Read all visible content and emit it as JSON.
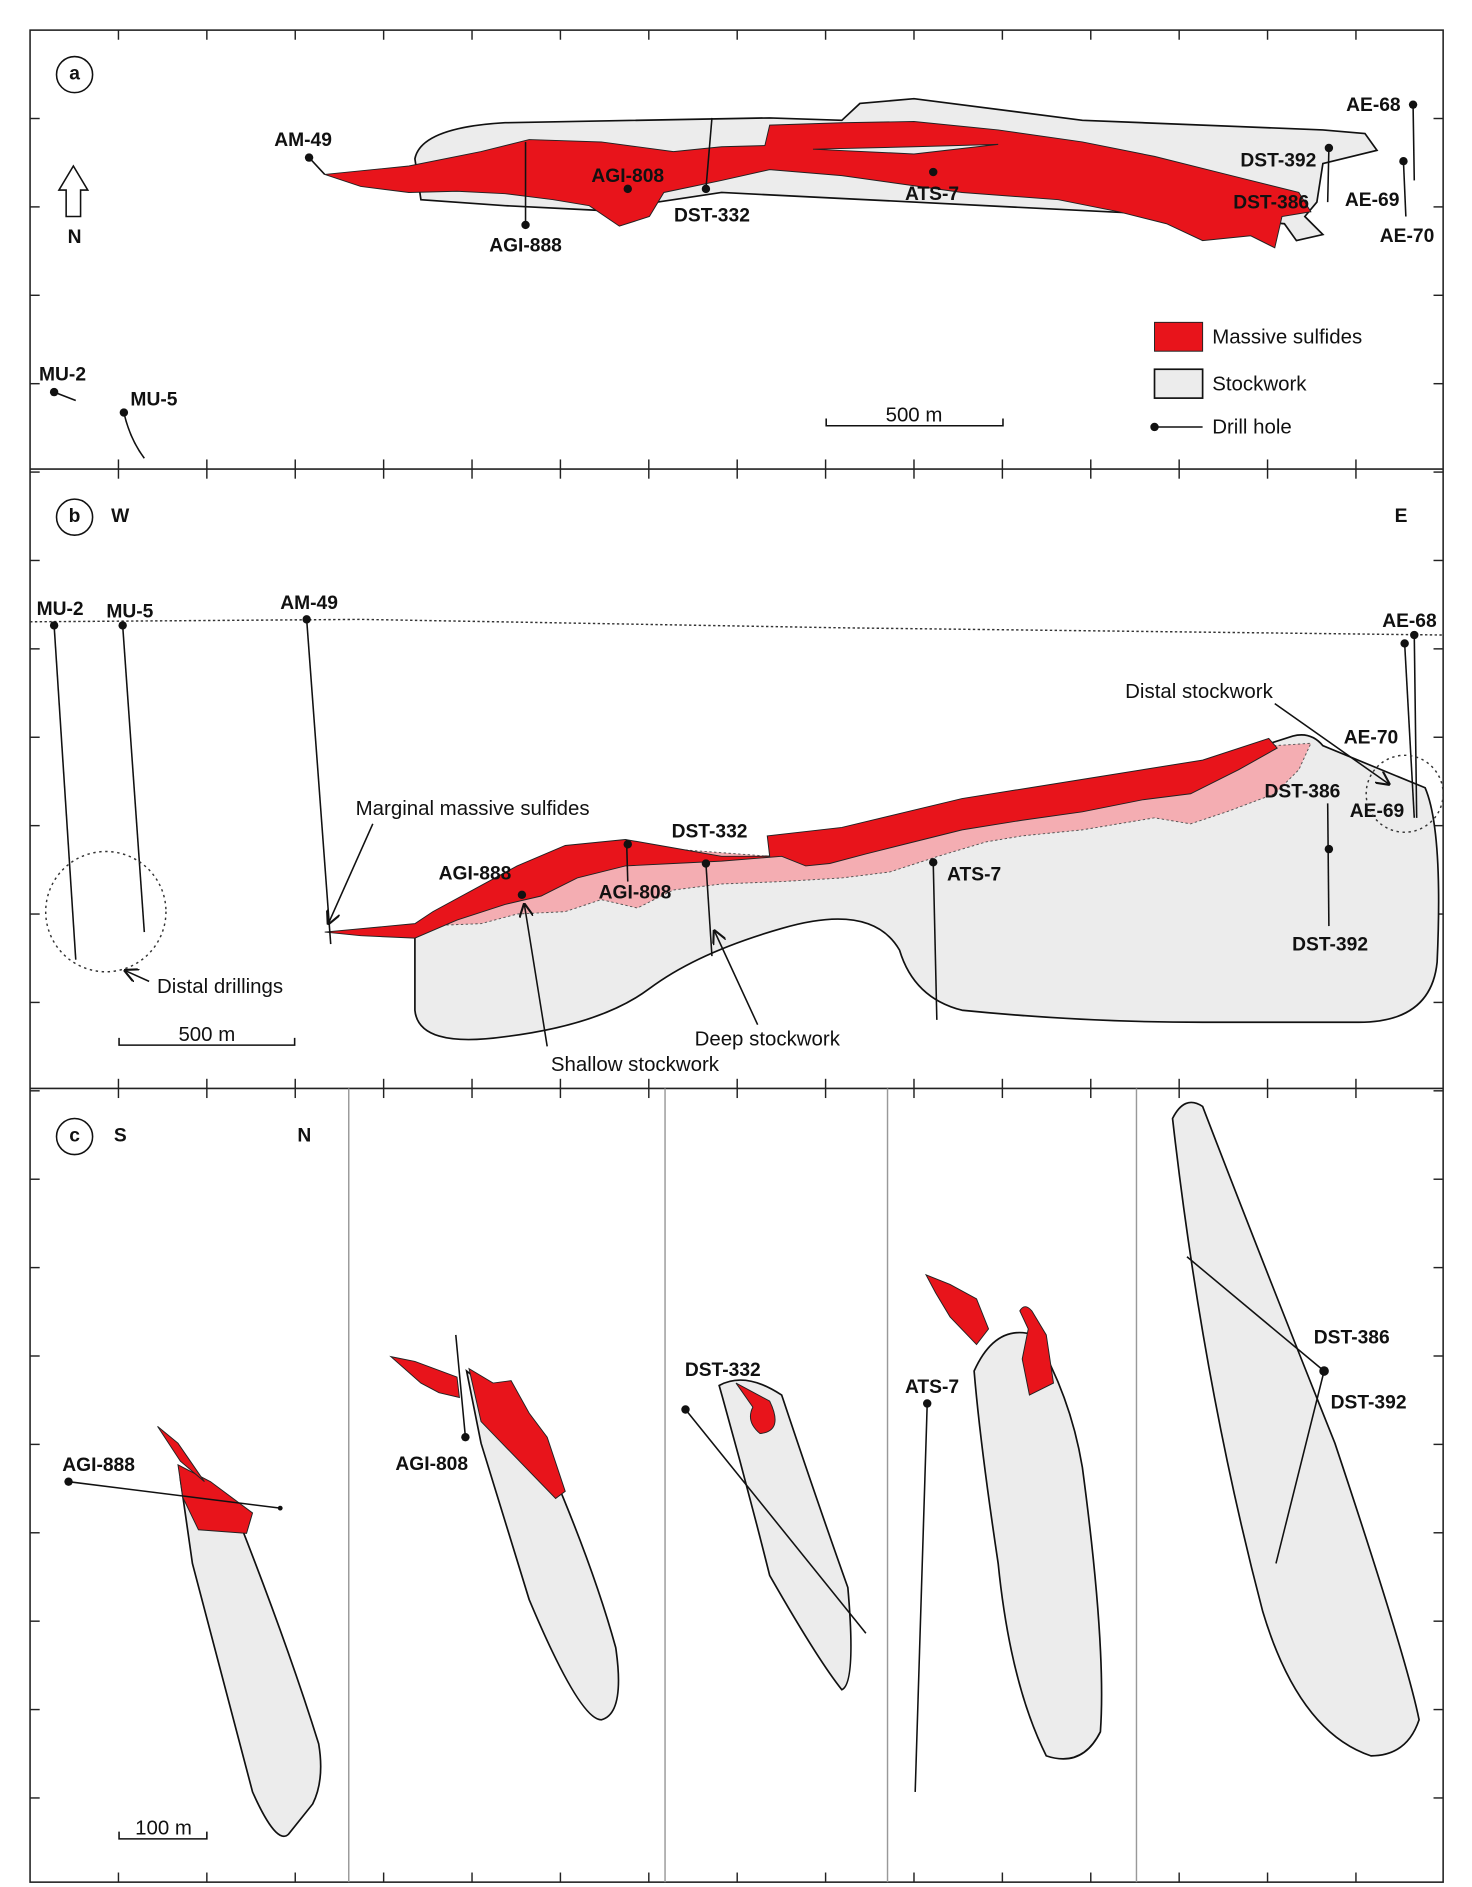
{
  "panel_a": {
    "label": "a",
    "north": "N",
    "drill_holes": [
      "AM-49",
      "AGI-888",
      "AGI-808",
      "DST-332",
      "ATS-7",
      "DST-392",
      "DST-386",
      "AE-68",
      "AE-69",
      "AE-70",
      "MU-2",
      "MU-5"
    ],
    "legend": [
      "Massive sulfides",
      "Stockwork",
      "Drill hole"
    ],
    "scale_bar": "500 m"
  },
  "panel_b": {
    "label": "b",
    "west": "W",
    "east": "E",
    "drill_holes": [
      "MU-2",
      "MU-5",
      "AM-49",
      "AE-68",
      "AE-70",
      "DST-386",
      "AE-69",
      "DST-392",
      "DST-332",
      "AGI-808",
      "AGI-888",
      "ATS-7"
    ],
    "annotations": [
      "Marginal massive sulfides",
      "Distal drillings",
      "Shallow stockwork",
      "Deep stockwork",
      "Distal stockwork"
    ],
    "scale_bar": "500 m"
  },
  "panel_c": {
    "label": "c",
    "south": "S",
    "north": "N",
    "drill_holes": [
      "AGI-888",
      "AGI-808",
      "DST-332",
      "ATS-7",
      "DST-386",
      "DST-392"
    ],
    "scale_bar": "100 m"
  }
}
